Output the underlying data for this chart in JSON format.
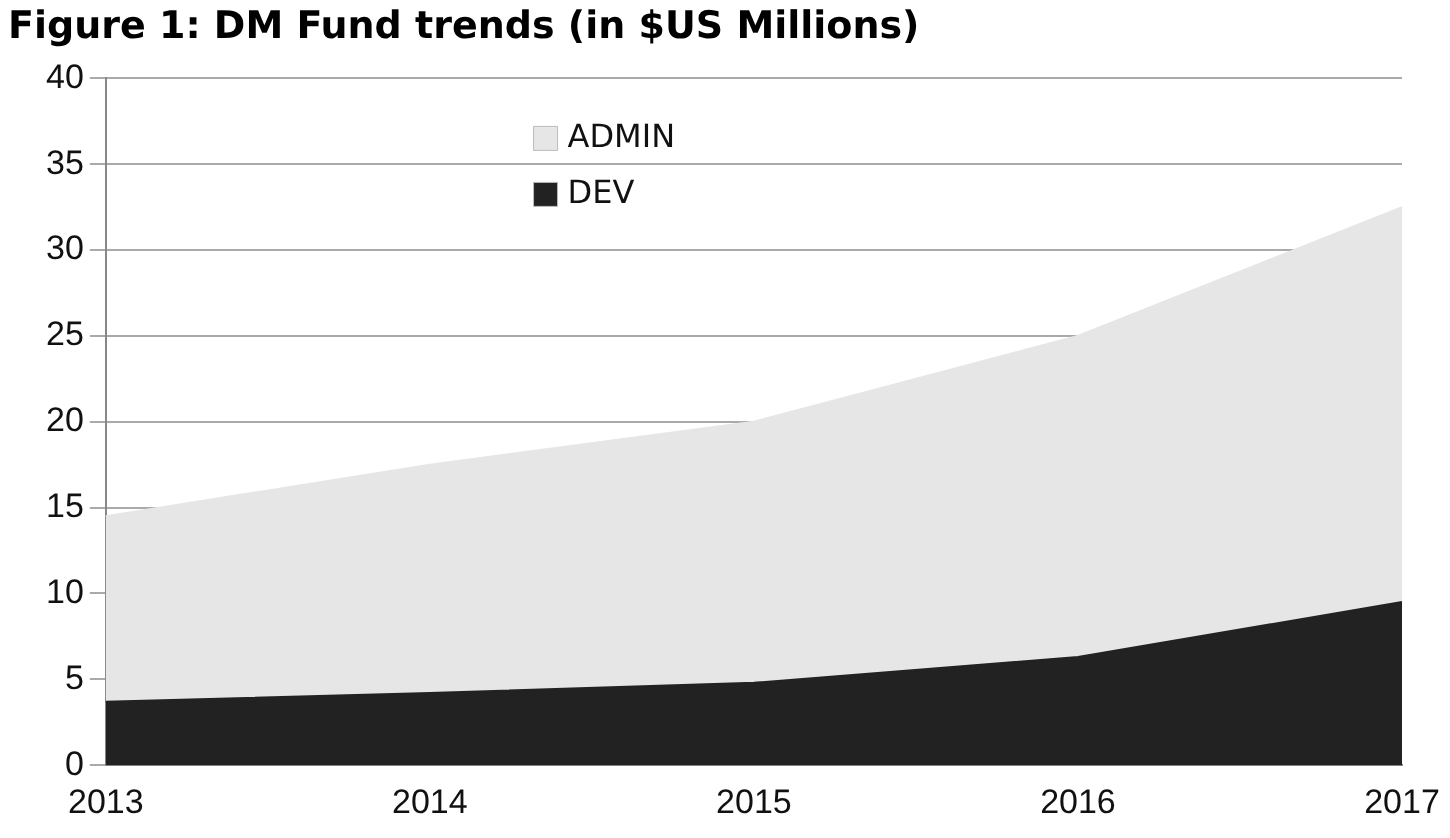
{
  "chart_data": {
    "type": "area",
    "title": "Figure 1: DM Fund trends (in $US Millions)",
    "categories": [
      "2013",
      "2014",
      "2015",
      "2016",
      "2017"
    ],
    "stacked": true,
    "series": [
      {
        "name": "DEV",
        "color": "#222222",
        "values": [
          3.7,
          4.2,
          4.8,
          6.3,
          9.5
        ]
      },
      {
        "name": "ADMIN",
        "color": "#e6e6e6",
        "values": [
          10.8,
          13.3,
          15.2,
          18.7,
          23
        ]
      }
    ],
    "ylim": [
      0,
      40
    ],
    "yticks": [
      0,
      5,
      10,
      15,
      20,
      25,
      30,
      35,
      40
    ],
    "grid": "y",
    "legend": "top"
  }
}
